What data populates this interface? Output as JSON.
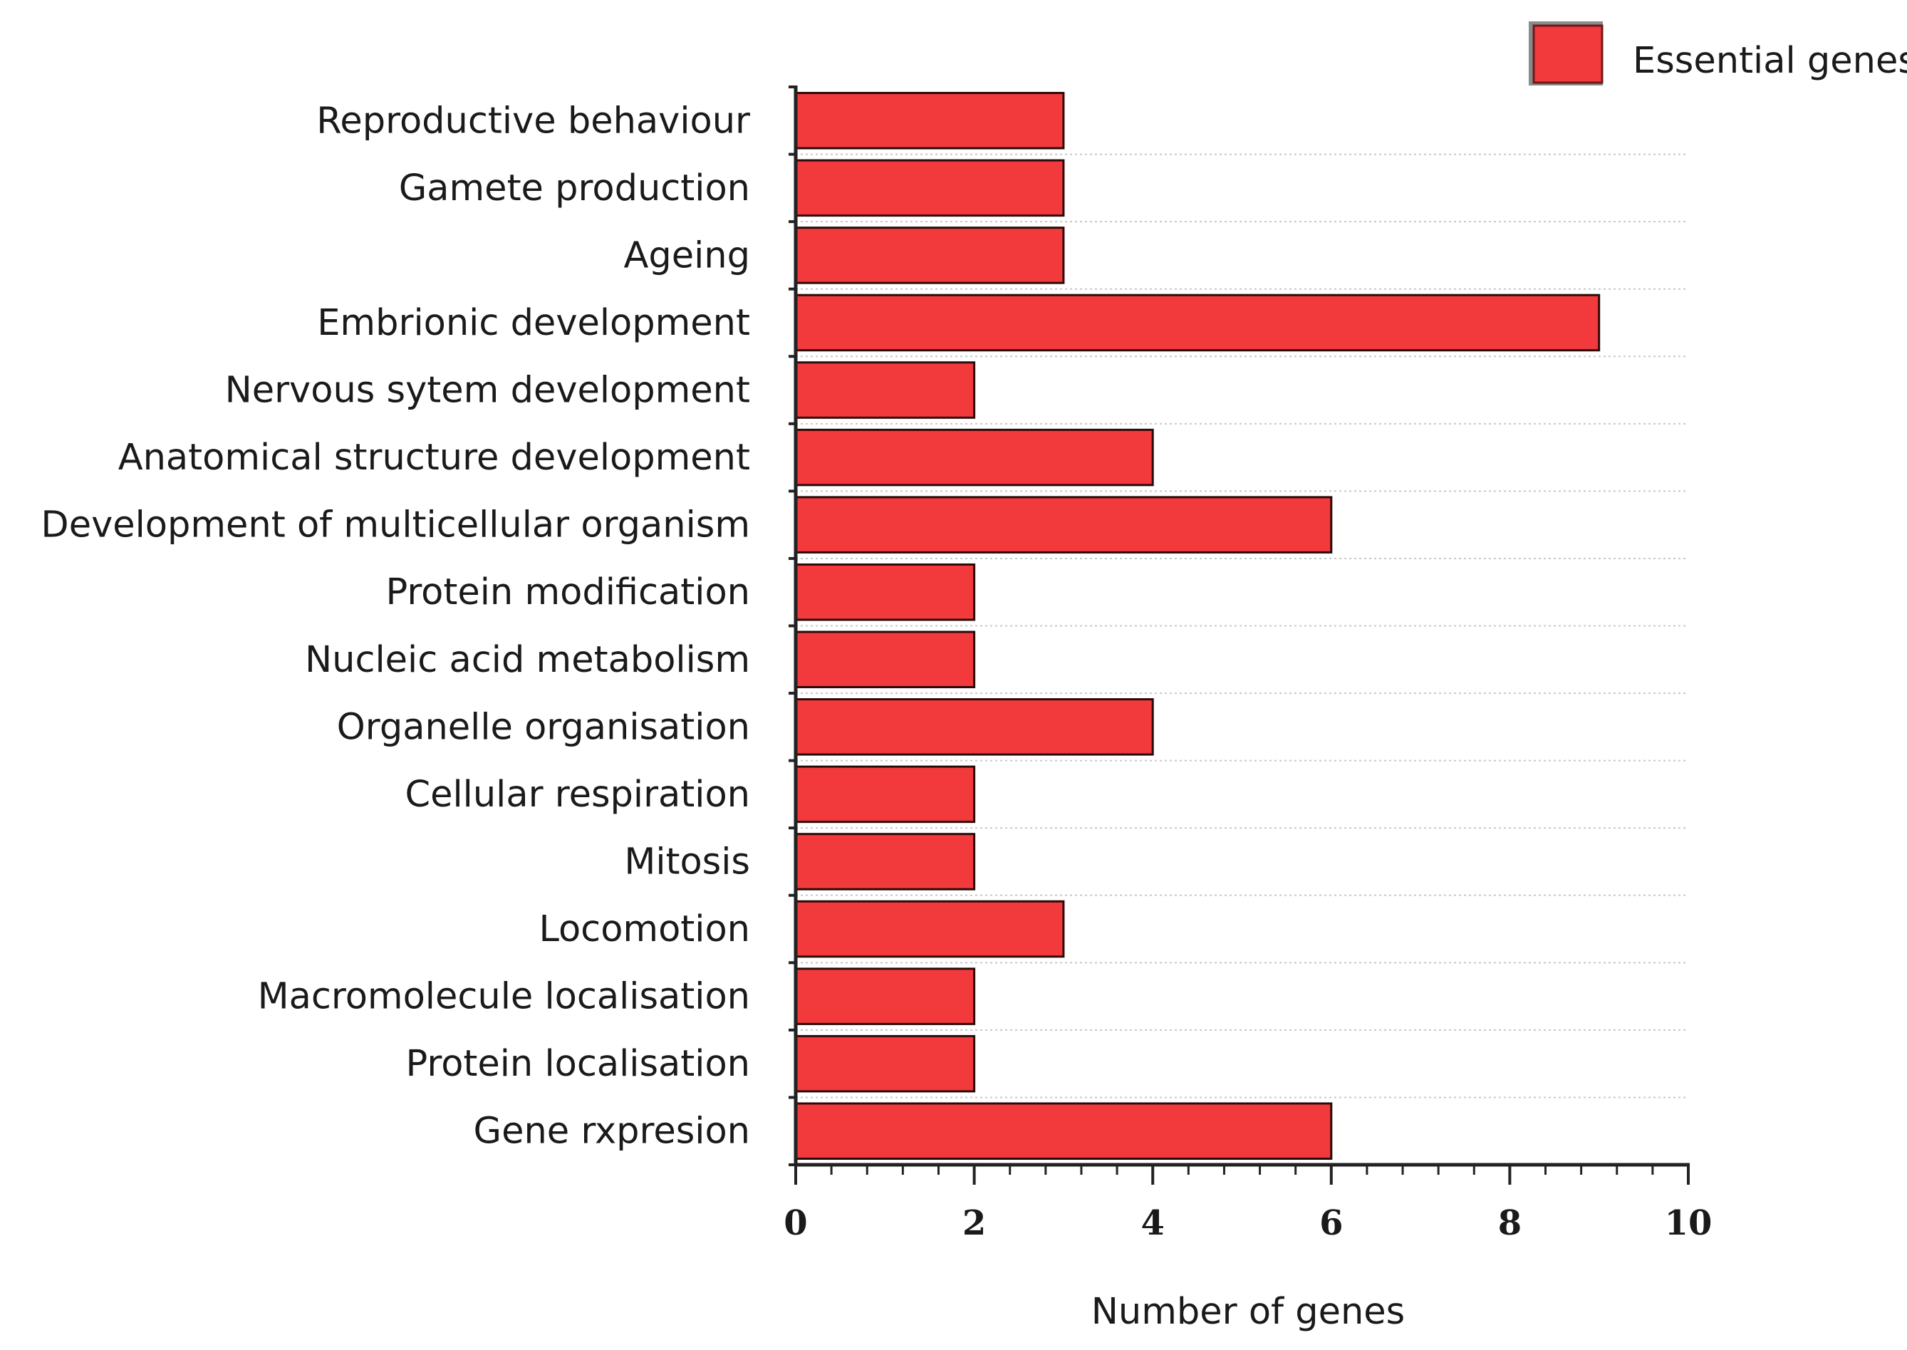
{
  "chart_data": {
    "type": "bar",
    "orientation": "horizontal",
    "title": "",
    "xlabel": "Number of genes",
    "ylabel": "",
    "xlim": [
      0,
      10
    ],
    "xticks": [
      0,
      2,
      4,
      6,
      8,
      10
    ],
    "grid": true,
    "legend_position": "top-right",
    "categories": [
      "Reproductive behaviour",
      "Gamete production",
      "Ageing",
      "Embrionic development",
      "Nervous sytem development",
      "Anatomical structure development",
      "Development of multicellular organism",
      "Protein modification",
      "Nucleic acid metabolism",
      "Organelle organisation",
      "Cellular respiration",
      "Mitosis",
      "Locomotion",
      "Macromolecule localisation",
      "Protein localisation",
      "Gene rxpresion"
    ],
    "series": [
      {
        "name": "Essential genes",
        "color": "#f23a3c",
        "values": [
          3,
          3,
          3,
          9,
          2,
          4,
          6,
          2,
          2,
          4,
          2,
          2,
          3,
          2,
          2,
          6
        ]
      }
    ]
  }
}
